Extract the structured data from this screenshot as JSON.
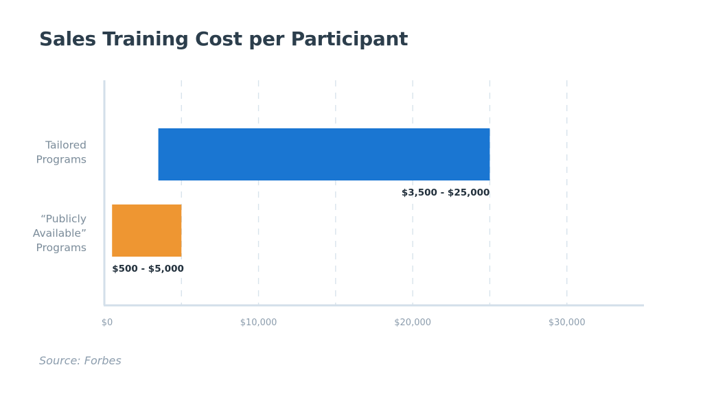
{
  "chart_data": {
    "type": "bar",
    "orientation": "horizontal",
    "title": "Sales Training Cost per Participant",
    "categories": [
      [
        "Tailored",
        "Programs"
      ],
      [
        "“Publicly",
        "Available”",
        "Programs"
      ]
    ],
    "ranges": [
      {
        "low": 3500,
        "high": 25000,
        "label": "$3,500 - $25,000",
        "color": "#1a76d2"
      },
      {
        "low": 500,
        "high": 5000,
        "label": "$500 - $5,000",
        "color": "#ee9632"
      }
    ],
    "x_ticks": [
      {
        "value": 0,
        "label": "$0"
      },
      {
        "value": 10000,
        "label": "$10,000"
      },
      {
        "value": 20000,
        "label": "$20,000"
      },
      {
        "value": 30000,
        "label": "$30,000"
      }
    ],
    "gridline_values": [
      5000,
      10000,
      15000,
      20000,
      25000,
      30000
    ],
    "xlim": [
      0,
      35000
    ],
    "xlabel": "",
    "ylabel": "",
    "grid": true,
    "axis_color": "#d3dfea",
    "grid_color": "#d8e3ec"
  },
  "source": "Source: Forbes"
}
